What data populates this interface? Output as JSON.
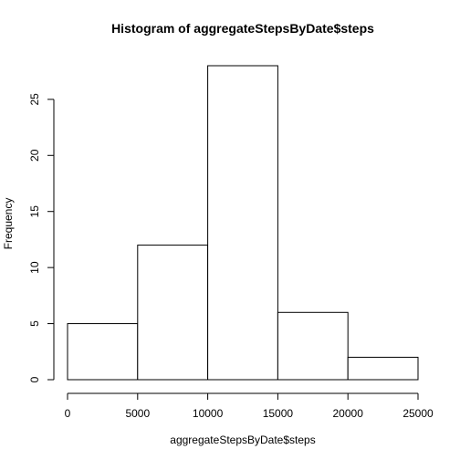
{
  "chart_data": {
    "type": "bar",
    "title": "Histogram of aggregateStepsByDate$steps",
    "xlabel": "aggregateStepsByDate$steps",
    "ylabel": "Frequency",
    "bins": [
      {
        "from": 0,
        "to": 5000,
        "count": 5
      },
      {
        "from": 5000,
        "to": 10000,
        "count": 12
      },
      {
        "from": 10000,
        "to": 15000,
        "count": 28
      },
      {
        "from": 15000,
        "to": 20000,
        "count": 6
      },
      {
        "from": 20000,
        "to": 25000,
        "count": 2
      }
    ],
    "xlim": [
      0,
      25000
    ],
    "ylim": [
      0,
      28
    ],
    "x_ticks": [
      0,
      5000,
      10000,
      15000,
      20000,
      25000
    ],
    "y_ticks": [
      0,
      5,
      10,
      15,
      20,
      25
    ],
    "grid": false,
    "bar_fill": "#ffffff",
    "bar_stroke": "#000000"
  }
}
